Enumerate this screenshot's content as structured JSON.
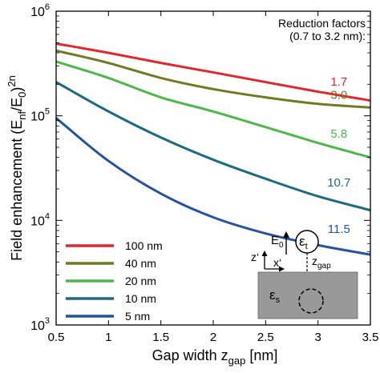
{
  "chart_data": {
    "type": "line",
    "xlabel_main": "Gap width z",
    "xlabel_sub": "gap",
    "xlabel_unit": " [nm]",
    "ylabel_parts": {
      "a": "Field enhancement  (E",
      "b": "nf",
      "c": "/E",
      "d": "0",
      "e": ")",
      "f": "2n"
    },
    "xlim": [
      0.5,
      3.5
    ],
    "ylim": [
      1000,
      1000000
    ],
    "yscale": "log",
    "xticks": [
      0.5,
      1,
      1.5,
      2,
      2.5,
      3,
      3.5
    ],
    "xtick_labels": [
      "0.5",
      "1",
      "1.5",
      "2",
      "2.5",
      "3",
      "3.5"
    ],
    "yticks": [
      {
        "value": 1000,
        "base": "10",
        "exp": "3"
      },
      {
        "value": 10000,
        "base": "10",
        "exp": "4"
      },
      {
        "value": 100000,
        "base": "10",
        "exp": "5"
      },
      {
        "value": 1000000,
        "base": "10",
        "exp": "6"
      }
    ],
    "x": [
      0.5,
      1.0,
      1.5,
      2.0,
      2.5,
      3.0,
      3.5
    ],
    "series": [
      {
        "name": "100 nm",
        "color": "#e3262b",
        "values": [
          490000,
          400000,
          320000,
          260000,
          210000,
          170000,
          140000
        ]
      },
      {
        "name": "40 nm",
        "color": "#707a22",
        "values": [
          420000,
          320000,
          230000,
          180000,
          150000,
          130000,
          120000
        ]
      },
      {
        "name": "20 nm",
        "color": "#4cb849",
        "values": [
          330000,
          230000,
          150000,
          110000,
          78000,
          55000,
          40000
        ]
      },
      {
        "name": "10 nm",
        "color": "#1d6b80",
        "values": [
          210000,
          110000,
          62000,
          38000,
          25000,
          17000,
          12500
        ]
      },
      {
        "name": "5 nm",
        "color": "#2552a3",
        "values": [
          95000,
          37000,
          18000,
          10700,
          7500,
          5800,
          4700
        ]
      }
    ],
    "reduction_title_1": "Reduction factors",
    "reduction_title_2": "(0.7 to 3.2 nm):",
    "reduction_labels": [
      {
        "text": "1.7",
        "color": "#e3262b",
        "x": 3.2,
        "y": 195000
      },
      {
        "text": "3.0",
        "color": "#707a22",
        "x": 3.2,
        "y": 145000
      },
      {
        "text": "5.8",
        "color": "#4cb849",
        "x": 3.2,
        "y": 62000
      },
      {
        "text": "10.7",
        "color": "#1d6b80",
        "x": 3.2,
        "y": 21000
      },
      {
        "text": "11.5",
        "color": "#2552a3",
        "x": 3.2,
        "y": 7600
      }
    ],
    "legend_position": "bottom-left",
    "grid": false
  },
  "inset": {
    "z_label": "z‘",
    "x_label": "x‘",
    "e0_main": "E",
    "e0_sub": "0",
    "eps_t_main": "ε",
    "eps_t_sub": "t",
    "zgap_main": "z",
    "zgap_sub": "gap",
    "eps_s_main": "ε",
    "eps_s_sub": "s",
    "substrate_color": "#999999"
  }
}
